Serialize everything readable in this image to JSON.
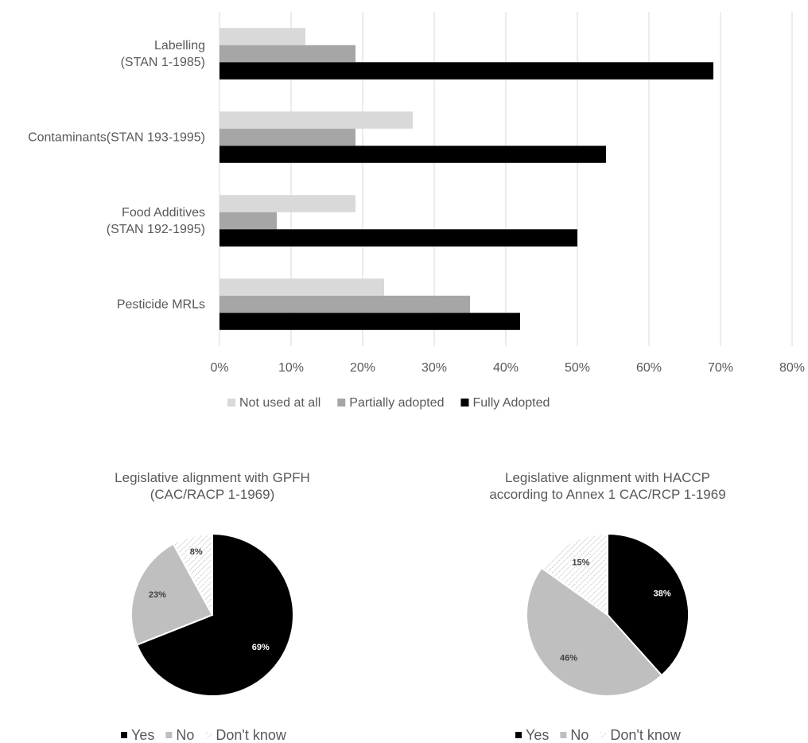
{
  "chart_data": [
    {
      "type": "hbar",
      "categories": [
        "Labelling\n(STAN 1-1985)",
        "Contaminants(STAN 193-1995)",
        "Food Additives\n(STAN 192-1995)",
        "Pesticide MRLs"
      ],
      "series": [
        {
          "name": "Not used at all",
          "color": "#d9d9d9",
          "values": [
            12,
            27,
            19,
            23
          ]
        },
        {
          "name": "Partially adopted",
          "color": "#a6a6a6",
          "values": [
            19,
            19,
            8,
            35
          ]
        },
        {
          "name": "Fully Adopted",
          "color": "#000000",
          "values": [
            69,
            54,
            50,
            42
          ]
        }
      ],
      "xlim": [
        0,
        80
      ],
      "xticks": [
        {
          "value": 0,
          "label": "0%"
        },
        {
          "value": 10,
          "label": "10%"
        },
        {
          "value": 20,
          "label": "20%"
        },
        {
          "value": 30,
          "label": "30%"
        },
        {
          "value": 40,
          "label": "40%"
        },
        {
          "value": 50,
          "label": "50%"
        },
        {
          "value": 60,
          "label": "60%"
        },
        {
          "value": 70,
          "label": "70%"
        },
        {
          "value": 80,
          "label": "80%"
        }
      ],
      "grid": true,
      "legend": "bottom"
    },
    {
      "type": "pie",
      "title": "Legislative alignment with GPFH\n(CAC/RACP 1-1969)",
      "categories": [
        "Yes",
        "No",
        "Don't know"
      ],
      "values": [
        69,
        23,
        8
      ],
      "value_labels": [
        "69%",
        "23%",
        "8%"
      ],
      "colors": [
        "#000000",
        "#bfbfbf",
        "#a6a6a6"
      ],
      "hatched": [
        false,
        false,
        true
      ],
      "legend": "bottom"
    },
    {
      "type": "pie",
      "title": "Legislative alignment with HACCP\naccording to Annex 1 CAC/RCP 1-1969",
      "categories": [
        "Yes",
        "No",
        "Don't know"
      ],
      "values": [
        38,
        46,
        15
      ],
      "value_labels": [
        "38%",
        "46%",
        "15%"
      ],
      "colors": [
        "#000000",
        "#bfbfbf",
        "#a6a6a6"
      ],
      "hatched": [
        false,
        false,
        true
      ],
      "legend": "bottom"
    }
  ]
}
